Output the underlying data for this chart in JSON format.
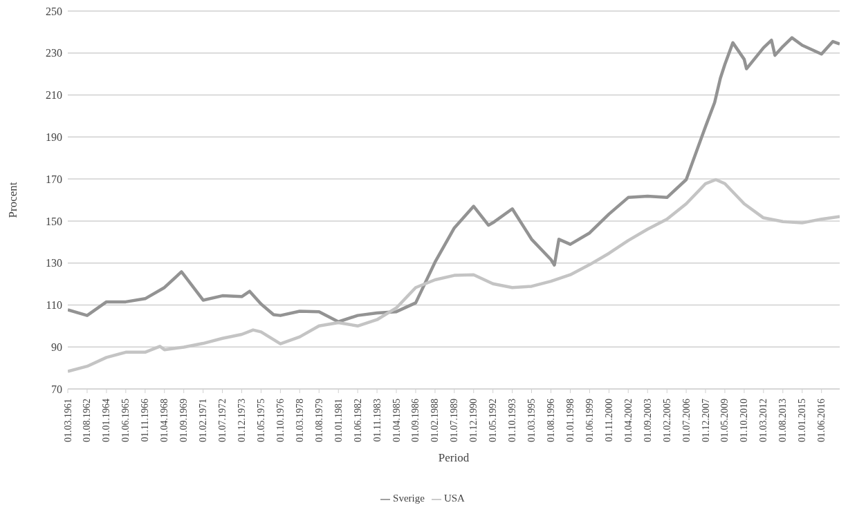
{
  "chart_data": {
    "type": "line",
    "xlabel": "Period",
    "ylabel": "Procent",
    "xlim": [
      "1961-03",
      "2017-10"
    ],
    "xticks": [
      {
        "value": "1961-03",
        "label": "01.03.1961"
      },
      {
        "value": "1962-08",
        "label": "01.08.1962"
      },
      {
        "value": "1964-01",
        "label": "01.01.1964"
      },
      {
        "value": "1965-06",
        "label": "01.06.1965"
      },
      {
        "value": "1966-11",
        "label": "01.11.1966"
      },
      {
        "value": "1968-04",
        "label": "01.04.1968"
      },
      {
        "value": "1969-09",
        "label": "01.09.1969"
      },
      {
        "value": "1971-02",
        "label": "01.02.1971"
      },
      {
        "value": "1972-07",
        "label": "01.07.1972"
      },
      {
        "value": "1973-12",
        "label": "01.12.1973"
      },
      {
        "value": "1975-05",
        "label": "01.05.1975"
      },
      {
        "value": "1976-10",
        "label": "01.10.1976"
      },
      {
        "value": "1978-03",
        "label": "01.03.1978"
      },
      {
        "value": "1979-08",
        "label": "01.08.1979"
      },
      {
        "value": "1981-01",
        "label": "01.01.1981"
      },
      {
        "value": "1982-06",
        "label": "01.06.1982"
      },
      {
        "value": "1983-11",
        "label": "01.11.1983"
      },
      {
        "value": "1985-04",
        "label": "01.04.1985"
      },
      {
        "value": "1986-09",
        "label": "01.09.1986"
      },
      {
        "value": "1988-02",
        "label": "01.02.1988"
      },
      {
        "value": "1989-07",
        "label": "01.07.1989"
      },
      {
        "value": "1990-12",
        "label": "01.12.1990"
      },
      {
        "value": "1992-05",
        "label": "01.05.1992"
      },
      {
        "value": "1993-10",
        "label": "01.10.1993"
      },
      {
        "value": "1995-03",
        "label": "01.03.1995"
      },
      {
        "value": "1996-08",
        "label": "01.08.1996"
      },
      {
        "value": "1998-01",
        "label": "01.01.1998"
      },
      {
        "value": "1999-06",
        "label": "01.06.1999"
      },
      {
        "value": "2000-11",
        "label": "01.11.2000"
      },
      {
        "value": "2002-04",
        "label": "01.04.2002"
      },
      {
        "value": "2003-09",
        "label": "01.09.2003"
      },
      {
        "value": "2005-02",
        "label": "01.02.2005"
      },
      {
        "value": "2006-07",
        "label": "01.07.2006"
      },
      {
        "value": "2007-12",
        "label": "01.12.2007"
      },
      {
        "value": "2009-05",
        "label": "01.05.2009"
      },
      {
        "value": "2010-10",
        "label": "01.10.2010"
      },
      {
        "value": "2012-03",
        "label": "01.03.2012"
      },
      {
        "value": "2013-08",
        "label": "01.08.2013"
      },
      {
        "value": "2015-01",
        "label": "01.01.2015"
      },
      {
        "value": "2016-06",
        "label": "01.06.2016"
      }
    ],
    "ylim": [
      70,
      250
    ],
    "yticks": [
      70,
      90,
      110,
      130,
      150,
      170,
      190,
      210,
      230,
      250
    ],
    "grid": "y",
    "legend": "bottom",
    "line_style": "solid",
    "marker": "none",
    "series": [
      {
        "name": "Sverige",
        "color": "#939393",
        "x": [
          "1961-03",
          "1962-08",
          "1964-01",
          "1965-06",
          "1966-11",
          "1968-04",
          "1969-07",
          "1969-09",
          "1971-02",
          "1972-07",
          "1973-12",
          "1974-07",
          "1975-05",
          "1976-04",
          "1976-10",
          "1978-03",
          "1979-08",
          "1981-01",
          "1982-06",
          "1983-11",
          "1985-04",
          "1986-09",
          "1988-02",
          "1989-07",
          "1990-12",
          "1992-01",
          "1992-05",
          "1993-10",
          "1995-03",
          "1996-08",
          "1996-11",
          "1997-03",
          "1998-01",
          "1999-06",
          "2000-11",
          "2002-04",
          "2003-09",
          "2005-02",
          "2006-07",
          "2007-12",
          "2008-08",
          "2009-01",
          "2009-05",
          "2009-12",
          "2010-10",
          "2010-12",
          "2012-03",
          "2012-10",
          "2013-01",
          "2013-08",
          "2014-04",
          "2015-01",
          "2016-06",
          "2017-04",
          "2017-10"
        ],
        "values": [
          107.7,
          105,
          111.5,
          111.5,
          113,
          118.3,
          125.8,
          124.4,
          112.3,
          114.4,
          114,
          116.5,
          110.5,
          105.4,
          105,
          107,
          106.8,
          102,
          105,
          106.2,
          106.8,
          111,
          130.4,
          146.7,
          157,
          148,
          149.2,
          155.8,
          141.3,
          131.6,
          129,
          141.3,
          138.9,
          144.3,
          153.3,
          161.2,
          161.8,
          161.2,
          169.7,
          195,
          206.5,
          218,
          224.6,
          234.9,
          227,
          222.5,
          232.5,
          236.1,
          228.9,
          233.1,
          237.3,
          233.7,
          229.5,
          235.5,
          234.3
        ]
      },
      {
        "name": "USA",
        "color": "#c4c4c4",
        "x": [
          "1961-03",
          "1962-08",
          "1964-01",
          "1965-06",
          "1966-11",
          "1967-12",
          "1968-04",
          "1969-09",
          "1971-02",
          "1972-07",
          "1973-12",
          "1974-10",
          "1975-05",
          "1976-10",
          "1978-03",
          "1979-08",
          "1981-01",
          "1982-06",
          "1983-11",
          "1985-04",
          "1986-09",
          "1988-02",
          "1989-07",
          "1990-12",
          "1992-05",
          "1993-10",
          "1995-03",
          "1996-08",
          "1998-01",
          "1999-06",
          "2000-11",
          "2002-04",
          "2003-09",
          "2005-02",
          "2006-07",
          "2007-12",
          "2008-09",
          "2009-05",
          "2010-10",
          "2012-03",
          "2013-08",
          "2015-01",
          "2016-06",
          "2017-10"
        ],
        "values": [
          78.4,
          80.8,
          85,
          87.5,
          87.5,
          90.3,
          88.7,
          89.9,
          91.7,
          94.1,
          96,
          98.1,
          97.2,
          91.5,
          94.8,
          100,
          101.6,
          100,
          103,
          108.6,
          118.3,
          122,
          124.1,
          124.4,
          120.1,
          118.3,
          118.9,
          121.3,
          124.4,
          129.2,
          134.6,
          140.7,
          146.1,
          150.9,
          158.2,
          167.8,
          169.7,
          167.8,
          158.2,
          151.5,
          149.7,
          149.1,
          150.9,
          152.1
        ]
      }
    ]
  }
}
